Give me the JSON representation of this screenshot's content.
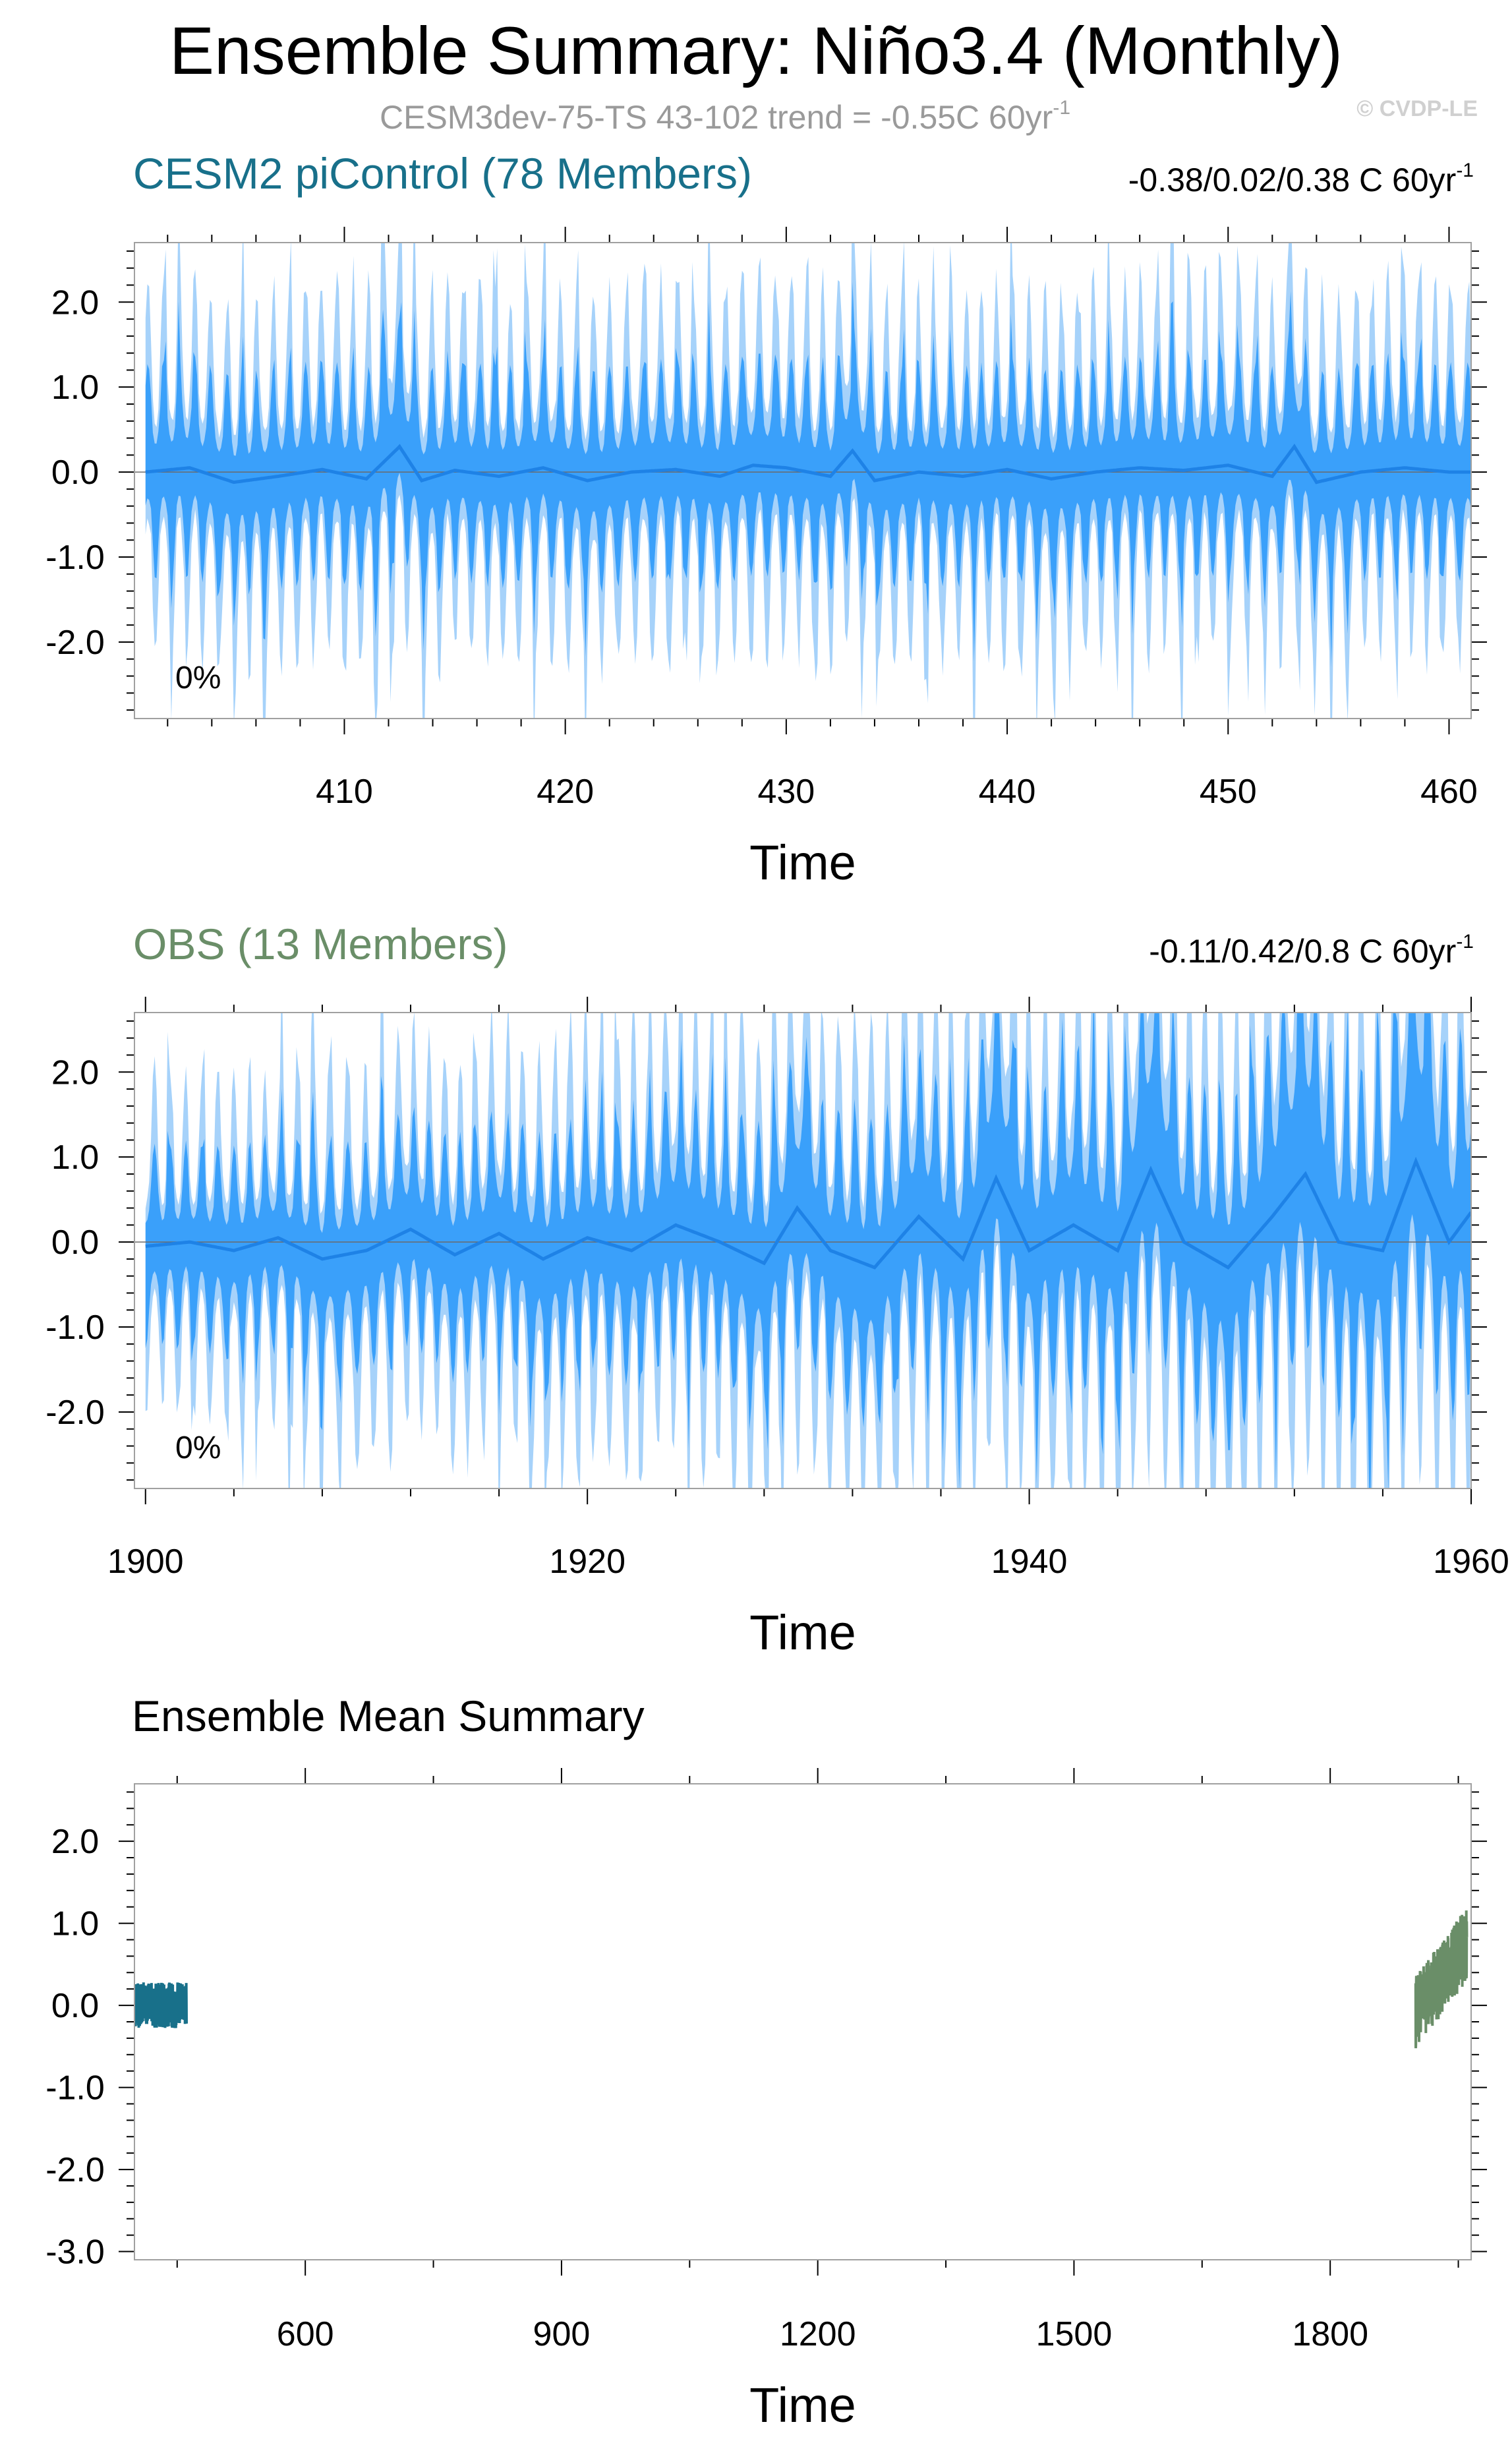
{
  "header": {
    "title": "Ensemble Summary: Niño3.4 (Monthly)",
    "subtitle_base": "CESM3dev-75-TS 43-102 trend = -0.55C 60yr",
    "subtitle_sup": "-1",
    "credit": "© CVDP-LE"
  },
  "colors": {
    "band_outer": "#a6d2fa",
    "band_inner": "#3aa0fa",
    "band_mean": "#1e82e6",
    "model_title": "#18708a",
    "obs_title": "#6a8e68",
    "frame": "#a0a0a0"
  },
  "chart_data": [
    {
      "id": "model",
      "type": "area",
      "title": "CESM2 piControl (78 Members)",
      "trend_base": "-0.38/0.02/0.38 C 60yr",
      "trend_sup": "-1",
      "percent_label": "0%",
      "xlabel": "Time",
      "ylabel": "",
      "xlim": [
        400.5,
        461
      ],
      "ylim": [
        -2.9,
        2.7
      ],
      "xticks": [
        410,
        420,
        430,
        440,
        450,
        460
      ],
      "xtick_labels": [
        "410",
        "420",
        "430",
        "440",
        "450",
        "460"
      ],
      "yticks": [
        2.0,
        1.0,
        0.0,
        -1.0,
        -2.0
      ],
      "ytick_labels": [
        "2.0",
        "1.0",
        "0.0",
        "-1.0",
        "-2.0"
      ],
      "series": [
        {
          "name": "",
          "x": [
            401,
            403,
            405,
            407,
            409,
            411,
            412.5,
            413.5,
            415,
            417,
            419,
            421,
            423,
            425,
            427,
            428.5,
            430,
            432,
            433,
            434,
            436,
            438,
            440,
            442,
            444,
            446,
            448,
            450,
            452,
            453,
            454,
            456,
            458,
            460,
            461
          ],
          "values": [
            0.0,
            0.05,
            -0.12,
            -0.05,
            0.03,
            -0.08,
            0.3,
            -0.1,
            0.02,
            -0.05,
            0.05,
            -0.1,
            0.0,
            0.03,
            -0.05,
            0.08,
            0.05,
            -0.05,
            0.25,
            -0.1,
            0.0,
            -0.05,
            0.03,
            -0.08,
            0.0,
            0.05,
            0.02,
            0.08,
            -0.05,
            0.3,
            -0.12,
            0.0,
            0.05,
            0.0,
            0.0
          ]
        }
      ]
    },
    {
      "id": "obs",
      "type": "area",
      "title": "OBS (13 Members)",
      "trend_base": "-0.11/0.42/0.8 C 60yr",
      "trend_sup": "-1",
      "percent_label": "0%",
      "xlabel": "Time",
      "ylabel": "",
      "xlim": [
        1899.5,
        1960
      ],
      "ylim": [
        -2.9,
        2.7
      ],
      "xticks": [
        1900,
        1920,
        1940,
        1960
      ],
      "xtick_labels": [
        "1900",
        "1920",
        "1940",
        "1960"
      ],
      "yticks": [
        2.0,
        1.0,
        0.0,
        -1.0,
        -2.0
      ],
      "ytick_labels": [
        "2.0",
        "1.0",
        "0.0",
        "-1.0",
        "-2.0"
      ],
      "series": [
        {
          "name": "",
          "x": [
            1900,
            1902,
            1904,
            1906,
            1908,
            1910,
            1912,
            1914,
            1916,
            1918,
            1920,
            1922,
            1924,
            1926,
            1928,
            1929.5,
            1931,
            1933,
            1935,
            1937,
            1938.5,
            1940,
            1942,
            1944,
            1945.5,
            1947,
            1949,
            1951,
            1952.5,
            1954,
            1956,
            1957.5,
            1959,
            1960
          ],
          "values": [
            -0.05,
            0.0,
            -0.1,
            0.05,
            -0.2,
            -0.1,
            0.15,
            -0.15,
            0.1,
            -0.2,
            0.05,
            -0.1,
            0.2,
            0.0,
            -0.25,
            0.4,
            -0.1,
            -0.3,
            0.3,
            -0.2,
            0.75,
            -0.1,
            0.2,
            -0.1,
            0.85,
            0.0,
            -0.3,
            0.3,
            0.8,
            0.0,
            -0.1,
            0.95,
            0.0,
            0.35
          ]
        }
      ]
    },
    {
      "id": "summary",
      "type": "line",
      "title": "Ensemble Mean Summary",
      "xlabel": "Time",
      "ylabel": "",
      "xlim": [
        400,
        1965
      ],
      "ylim": [
        -3.1,
        2.7
      ],
      "xticks": [
        600,
        900,
        1200,
        1500,
        1800
      ],
      "xtick_labels": [
        "600",
        "900",
        "1200",
        "1500",
        "1800"
      ],
      "yticks": [
        2.0,
        1.0,
        0.0,
        -1.0,
        -2.0,
        -3.0
      ],
      "ytick_labels": [
        "2.0",
        "1.0",
        "0.0",
        "-1.0",
        "-2.0",
        "-3.0"
      ],
      "series": [
        {
          "name": "",
          "color_key": "model_title",
          "x_range": [
            401,
            461
          ],
          "amplitude": 0.28,
          "center": 0.0
        },
        {
          "name": "",
          "color_key": "obs_title",
          "x_range": [
            1900,
            1960
          ],
          "amplitude": 0.45,
          "trend": [
            -0.1,
            0.75
          ]
        }
      ]
    }
  ]
}
